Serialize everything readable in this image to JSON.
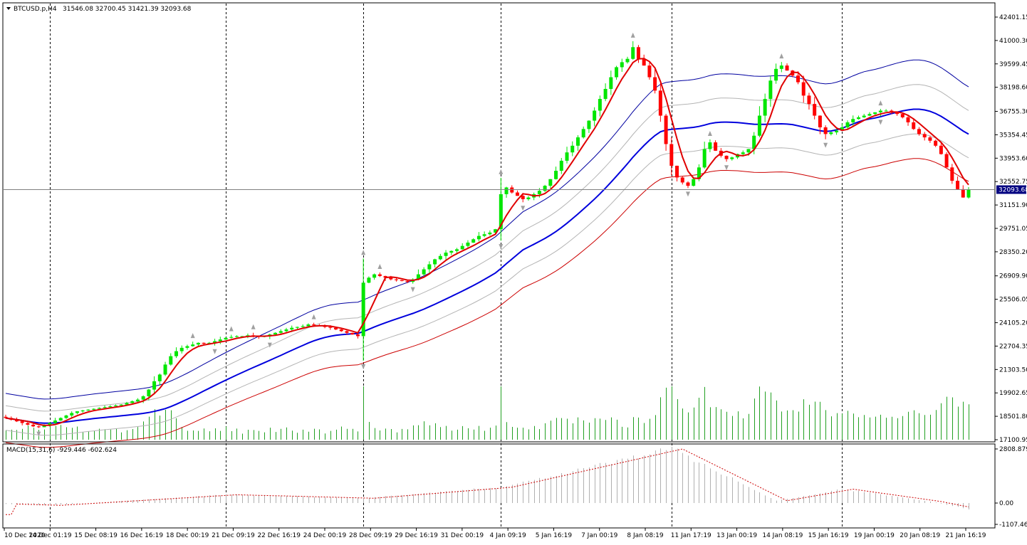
{
  "header": {
    "symbol": "BTCUSD.p,H4",
    "ohlc": "31546.08 32700.45 31421.39 32093.68",
    "macd_label": "MACD(15,31,6) -929.446 -602.624"
  },
  "colors": {
    "bull": "#00e600",
    "bear": "#ff0000",
    "env_outer_top": "#0000a0",
    "env_outer_bottom": "#cc0000",
    "env_inner": "#b4b4b4",
    "middle": "#0000dd",
    "ma_fast": "#e00000",
    "volume": "#22a022",
    "macd_hist": "#b0b0b0",
    "macd_signal": "#cc0000",
    "price_tag_bg": "#000080",
    "price_tag_text": "#ffffff",
    "fractal": "#a0a0a0"
  },
  "chart_data": {
    "type": "candlestick",
    "price_scale": {
      "ticks": [
        "42401.15",
        "41000.30",
        "39599.45",
        "38198.60",
        "36755.30",
        "35354.45",
        "33953.60",
        "32552.75",
        "31151.90",
        "29751.05",
        "28350.20",
        "26909.90",
        "25506.05",
        "24105.20",
        "22704.35",
        "21303.50",
        "19902.65",
        "18501.80",
        "17100.95"
      ],
      "min": 17100.95,
      "max": 42401.15,
      "current_price": "32093.68"
    },
    "macd_scale": {
      "ticks": [
        "2808.879",
        "0.00",
        "-1107.462"
      ],
      "min": -1107.462,
      "max": 2808.879
    },
    "time_labels": [
      "10 Dec 2020",
      "14 Dec 01:19",
      "15 Dec 08:19",
      "16 Dec 16:19",
      "18 Dec 00:19",
      "21 Dec 09:19",
      "22 Dec 16:19",
      "24 Dec 00:19",
      "28 Dec 09:19",
      "29 Dec 16:19",
      "31 Dec 00:19",
      "4 Jan 09:19",
      "5 Jan 16:19",
      "7 Jan 00:19",
      "8 Jan 08:19",
      "11 Jan 17:19",
      "13 Jan 00:19",
      "14 Jan 08:19",
      "15 Jan 16:19",
      "19 Jan 00:19",
      "20 Jan 08:19",
      "21 Jan 16:19"
    ],
    "period_separators_bar_index": [
      8,
      40,
      65,
      90,
      121,
      152
    ],
    "closes": [
      18400,
      18300,
      18200,
      18100,
      18000,
      17900,
      17850,
      17950,
      18100,
      18250,
      18400,
      18550,
      18700,
      18800,
      18850,
      18900,
      18950,
      19000,
      19050,
      19100,
      19150,
      19200,
      19300,
      19400,
      19500,
      19700,
      20100,
      20600,
      21000,
      21600,
      22100,
      22400,
      22600,
      22700,
      22800,
      22900,
      22850,
      22900,
      23000,
      23100,
      23200,
      23250,
      23300,
      23300,
      23350,
      23300,
      23250,
      23300,
      23400,
      23500,
      23600,
      23700,
      23800,
      23850,
      23900,
      24000,
      23950,
      23900,
      23850,
      23800,
      23700,
      23600,
      23500,
      23400,
      23300,
      26500,
      26800,
      27000,
      26900,
      26800,
      26700,
      26650,
      26600,
      26550,
      26700,
      27000,
      27300,
      27600,
      27900,
      28100,
      28300,
      28400,
      28500,
      28700,
      28900,
      29100,
      29300,
      29400,
      29500,
      29700,
      31800,
      32200,
      31900,
      31700,
      31500,
      31600,
      31800,
      32000,
      32300,
      32700,
      33200,
      33800,
      34300,
      34700,
      35200,
      35700,
      36200,
      36800,
      37500,
      38100,
      38800,
      39400,
      39700,
      39900,
      40600,
      39900,
      39500,
      38800,
      38000,
      36500,
      34800,
      33500,
      32800,
      32500,
      32300,
      32700,
      33400,
      34500,
      34900,
      34400,
      34100,
      33900,
      34000,
      34200,
      34300,
      34500,
      35300,
      36500,
      37500,
      38600,
      39300,
      39500,
      39200,
      38900,
      38500,
      37700,
      37200,
      36500,
      35800,
      35400,
      35500,
      35600,
      35800,
      36100,
      36300,
      36400,
      36500,
      36600,
      36700,
      36800,
      36800,
      36700,
      36600,
      36400,
      36100,
      35700,
      35400,
      35200,
      35000,
      34700,
      34200,
      33400,
      32600,
      32100,
      31600,
      32093.68
    ],
    "macd_signal_points": [
      [
        0,
        -50
      ],
      [
        8,
        -120
      ],
      [
        40,
        430
      ],
      [
        65,
        250
      ],
      [
        90,
        820
      ],
      [
        121,
        2808
      ],
      [
        140,
        120
      ],
      [
        152,
        720
      ],
      [
        168,
        80
      ],
      [
        180,
        -600
      ]
    ]
  }
}
